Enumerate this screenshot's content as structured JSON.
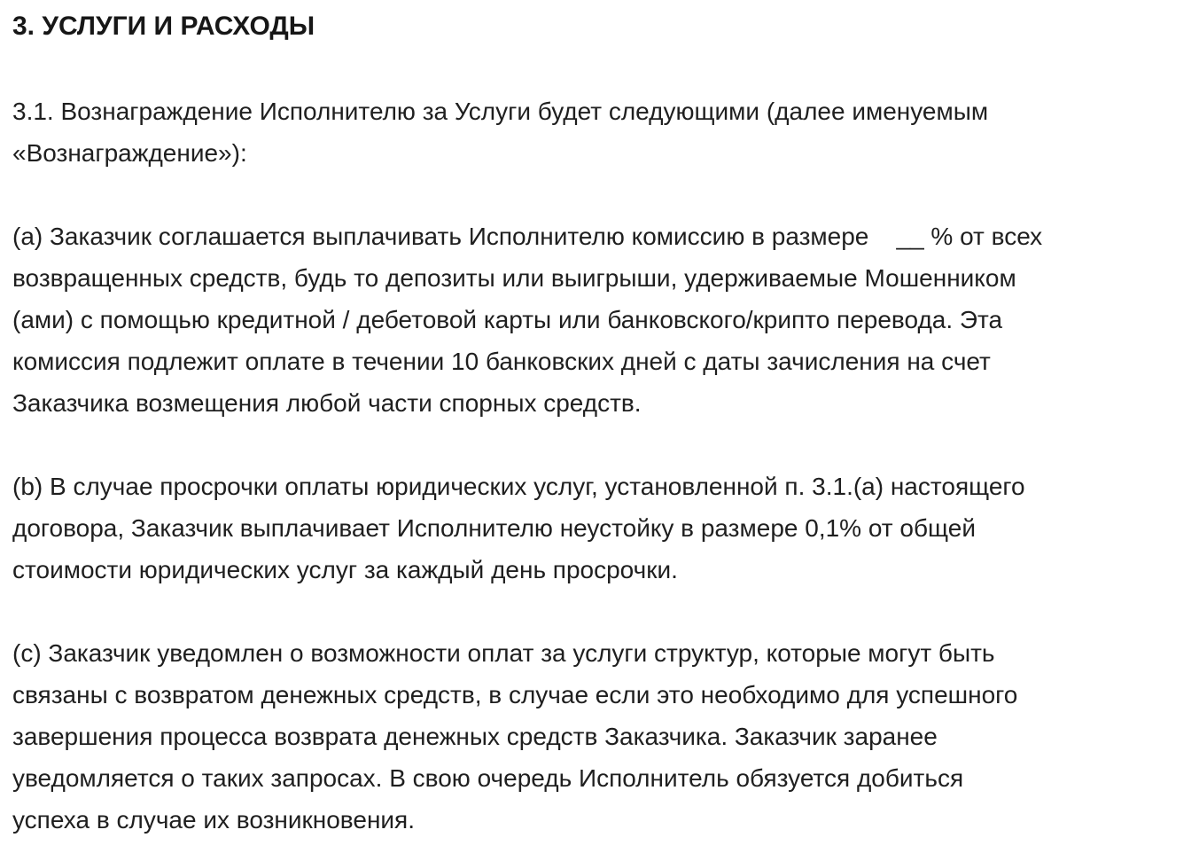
{
  "document": {
    "heading": "3. УСЛУГИ И РАСХОДЫ",
    "colors": {
      "text": "#1f1f1f",
      "background": "#ffffff"
    },
    "sections": [
      {
        "id": "3.1",
        "text": "3.1. Вознаграждение Исполнителю за Услуги будет следующими (далее именуемым\n«Вознаграждение»):"
      },
      {
        "id": "a",
        "text": "(a) Заказчик соглашается выплачивать Исполнителю комиссию в размере    __ % от всех\nвозвращенных средств, будь то депозиты или выигрыши, удерживаемые Мошенником\n(ами) с помощью кредитной / дебетовой карты или банковского/крипто перевода. Эта\nкомиссия подлежит оплате в течении 10 банковских дней с даты зачисления на счет\nЗаказчика возмещения любой части спорных средств."
      },
      {
        "id": "b",
        "text": "(b) В случае просрочки оплаты юридических услуг, установленной п. 3.1.(a) настоящего\nдоговора, Заказчик выплачивает Исполнителю неустойку в размере 0,1% от общей\nстоимости юридических услуг за каждый день просрочки."
      },
      {
        "id": "c",
        "text": "(c) Заказчик уведомлен о возможности оплат за услуги структур, которые могут быть\nсвязаны с возвратом денежных средств, в случае если это необходимо для успешного\nзавершения процесса возврата денежных средств Заказчика. Заказчик заранее\nуведомляется о таких запросах. В свою очередь Исполнитель обязуется добиться\nуспеха в случае их возникновения."
      }
    ]
  }
}
